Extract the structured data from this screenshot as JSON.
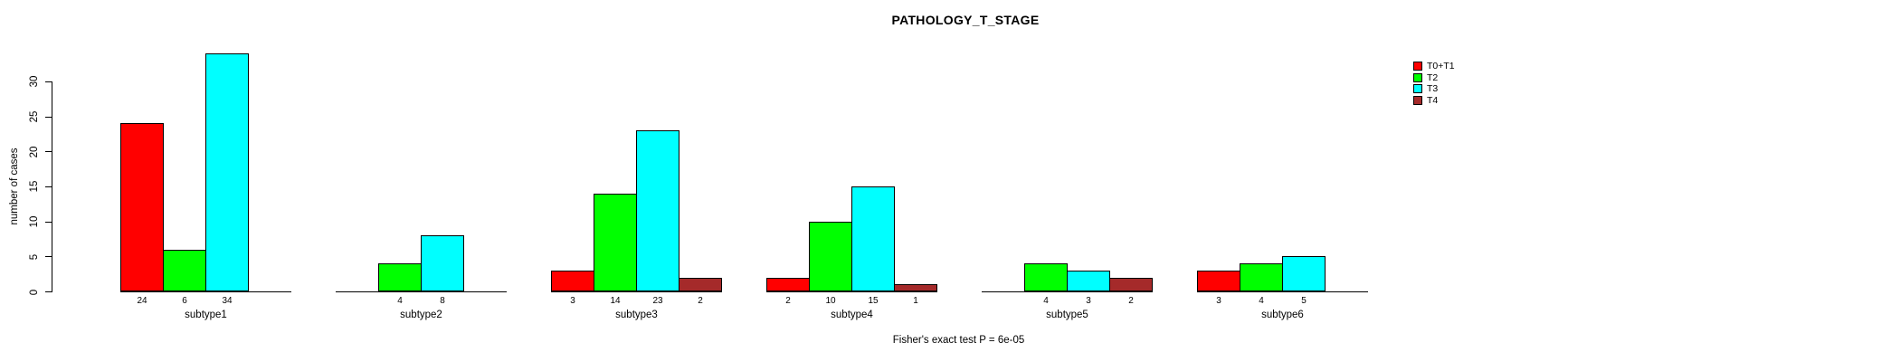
{
  "title": "PATHOLOGY_T_STAGE",
  "footer": "Fisher's exact test P = 6e-05",
  "ylabel": "number of cases",
  "colors": {
    "background": "#ffffff",
    "axis": "#000000",
    "t0_t1": "#FF0000",
    "t2": "#00FF00",
    "t3": "#00FFFF",
    "t4": "#A52A2A"
  },
  "legend": {
    "position": "right",
    "items": [
      {
        "label": "T0+T1",
        "color": "#FF0000"
      },
      {
        "label": "T2",
        "color": "#00FF00"
      },
      {
        "label": "T3",
        "color": "#00FFFF"
      },
      {
        "label": "T4",
        "color": "#A52A2A"
      }
    ]
  },
  "chart_data": {
    "type": "bar",
    "title": "PATHOLOGY_T_STAGE",
    "xlabel": "",
    "ylabel": "number of cases",
    "ylim": [
      0,
      34
    ],
    "yticks": [
      0,
      5,
      10,
      15,
      20,
      25,
      30
    ],
    "grid": false,
    "legend_position": "top-right",
    "annotation": "Fisher's exact test P = 6e-05",
    "categories": [
      "subtype1",
      "subtype2",
      "subtype3",
      "subtype4",
      "subtype5",
      "subtype6"
    ],
    "series": [
      {
        "name": "T0+T1",
        "color": "#FF0000",
        "values": [
          24,
          null,
          3,
          2,
          null,
          3
        ]
      },
      {
        "name": "T2",
        "color": "#00FF00",
        "values": [
          6,
          4,
          14,
          10,
          4,
          4
        ]
      },
      {
        "name": "T3",
        "color": "#00FFFF",
        "values": [
          34,
          8,
          23,
          15,
          3,
          5
        ]
      },
      {
        "name": "T4",
        "color": "#A52A2A",
        "values": [
          null,
          null,
          2,
          1,
          2,
          null
        ]
      }
    ],
    "bar_value_labels_shown": true
  }
}
